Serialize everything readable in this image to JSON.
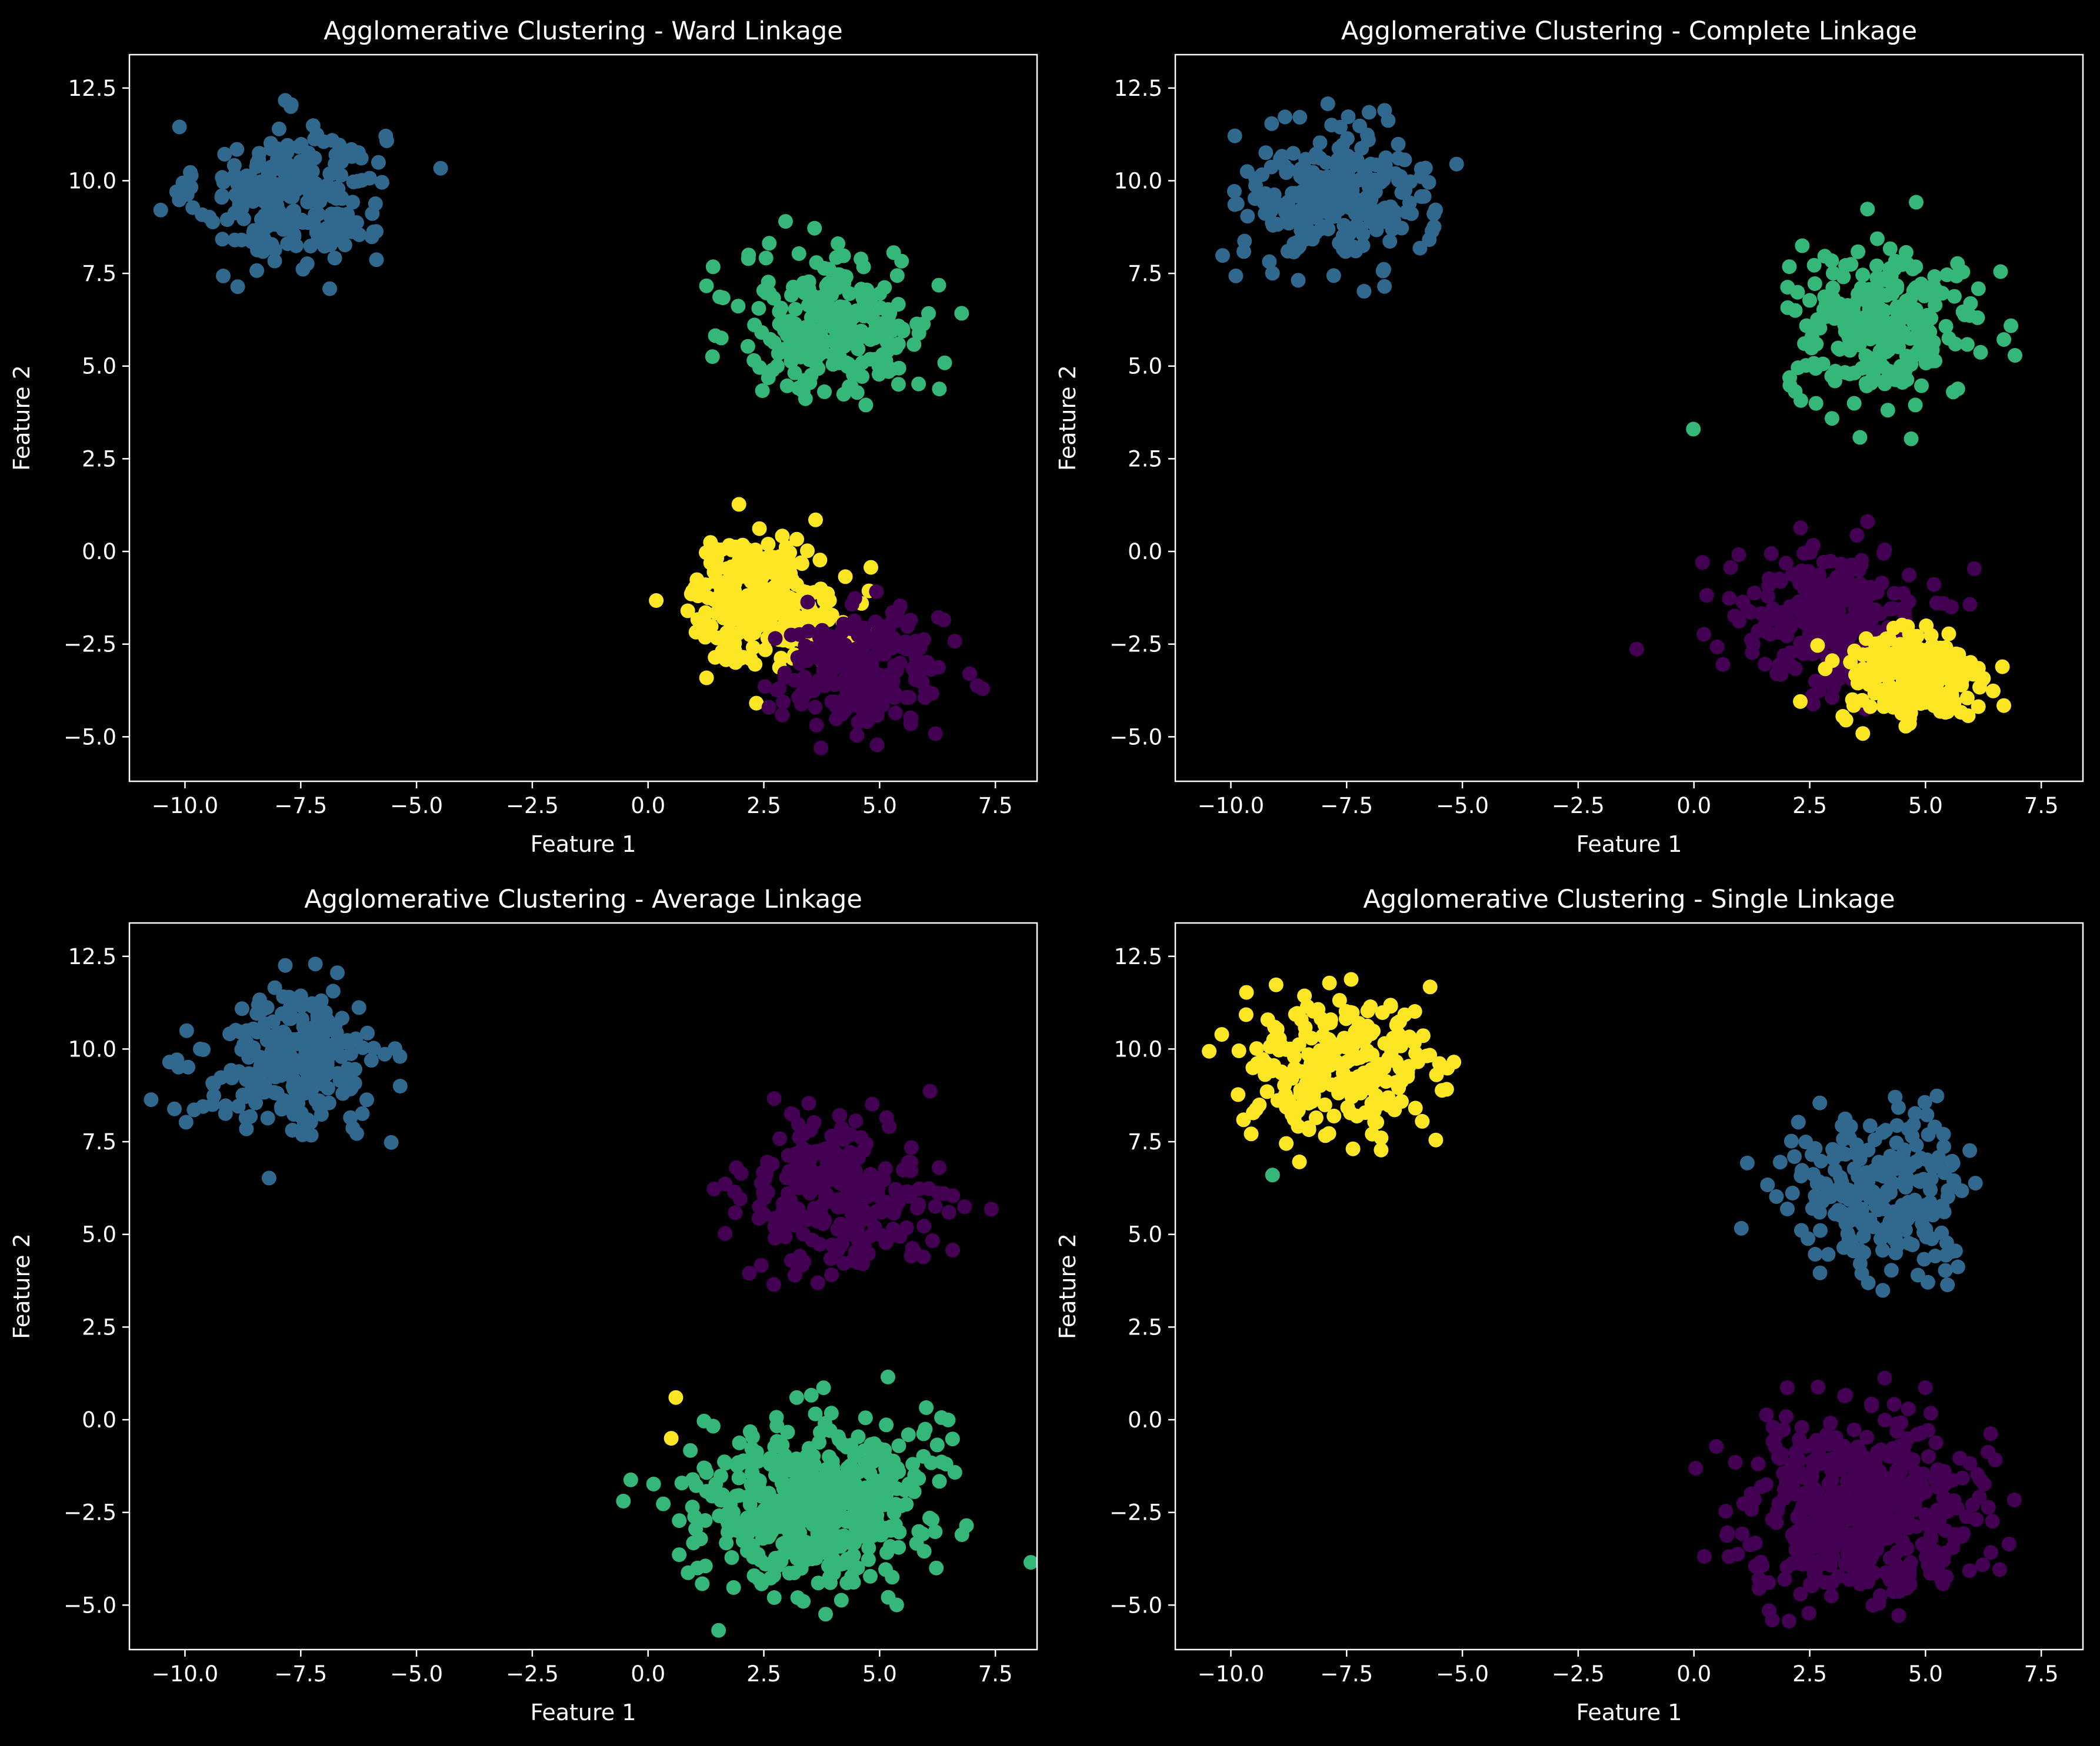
{
  "chart_data": [
    {
      "type": "scatter",
      "title": "Agglomerative Clustering - Ward Linkage",
      "xlabel": "Feature 1",
      "ylabel": "Feature 2",
      "xlim": [
        -11.2,
        8.4
      ],
      "ylim": [
        -6.2,
        13.4
      ],
      "xticks": [
        -10.0,
        -7.5,
        -5.0,
        -2.5,
        0.0,
        2.5,
        5.0,
        7.5
      ],
      "xtick_labels": [
        "−10.0",
        "−7.5",
        "−5.0",
        "−2.5",
        "0.0",
        "2.5",
        "5.0",
        "7.5"
      ],
      "yticks": [
        -5.0,
        -2.5,
        0.0,
        2.5,
        5.0,
        7.5,
        10.0,
        12.5
      ],
      "ytick_labels": [
        "−5.0",
        "−2.5",
        "0.0",
        "2.5",
        "5.0",
        "7.5",
        "10.0",
        "12.5"
      ],
      "grid": false,
      "series": [
        {
          "color": "#31688e",
          "center": [
            -7.7,
            9.6
          ],
          "spread": [
            1.0,
            0.95
          ],
          "n": 250
        },
        {
          "color": "#35b779",
          "center": [
            4.1,
            6.1
          ],
          "spread": [
            1.05,
            1.0
          ],
          "n": 250
        },
        {
          "color": "#fde725",
          "center": [
            2.5,
            -1.3
          ],
          "spread": [
            0.8,
            0.85
          ],
          "n": 250
        },
        {
          "color": "#440154",
          "center": [
            4.6,
            -3.2
          ],
          "spread": [
            0.9,
            0.75
          ],
          "n": 250
        }
      ]
    },
    {
      "type": "scatter",
      "title": "Agglomerative Clustering - Complete Linkage",
      "xlabel": "Feature 1",
      "ylabel": "Feature 2",
      "xlim": [
        -11.2,
        8.4
      ],
      "ylim": [
        -6.2,
        13.4
      ],
      "xticks": [
        -10.0,
        -7.5,
        -5.0,
        -2.5,
        0.0,
        2.5,
        5.0,
        7.5
      ],
      "xtick_labels": [
        "−10.0",
        "−7.5",
        "−5.0",
        "−2.5",
        "0.0",
        "2.5",
        "5.0",
        "7.5"
      ],
      "yticks": [
        -5.0,
        -2.5,
        0.0,
        2.5,
        5.0,
        7.5,
        10.0,
        12.5
      ],
      "ytick_labels": [
        "−5.0",
        "−2.5",
        "0.0",
        "2.5",
        "5.0",
        "7.5",
        "10.0",
        "12.5"
      ],
      "grid": false,
      "series": [
        {
          "color": "#31688e",
          "center": [
            -7.7,
            9.6
          ],
          "spread": [
            1.0,
            0.95
          ],
          "n": 250
        },
        {
          "color": "#35b779",
          "center": [
            4.1,
            6.1
          ],
          "spread": [
            1.05,
            1.0
          ],
          "n": 250
        },
        {
          "color": "#440154",
          "center": [
            2.9,
            -1.8
          ],
          "spread": [
            1.0,
            0.95
          ],
          "n": 260
        },
        {
          "color": "#fde725",
          "center": [
            4.7,
            -3.4
          ],
          "spread": [
            0.75,
            0.65
          ],
          "n": 240
        }
      ]
    },
    {
      "type": "scatter",
      "title": "Agglomerative Clustering - Average Linkage",
      "xlabel": "Feature 1",
      "ylabel": "Feature 2",
      "xlim": [
        -11.2,
        8.4
      ],
      "ylim": [
        -6.2,
        13.4
      ],
      "xticks": [
        -10.0,
        -7.5,
        -5.0,
        -2.5,
        0.0,
        2.5,
        5.0,
        7.5
      ],
      "xtick_labels": [
        "−10.0",
        "−7.5",
        "−5.0",
        "−2.5",
        "0.0",
        "2.5",
        "5.0",
        "7.5"
      ],
      "yticks": [
        -5.0,
        -2.5,
        0.0,
        2.5,
        5.0,
        7.5,
        10.0,
        12.5
      ],
      "ytick_labels": [
        "−5.0",
        "−2.5",
        "0.0",
        "2.5",
        "5.0",
        "7.5",
        "10.0",
        "12.5"
      ],
      "grid": false,
      "series": [
        {
          "color": "#31688e",
          "center": [
            -7.7,
            9.6
          ],
          "spread": [
            1.0,
            0.95
          ],
          "n": 250
        },
        {
          "color": "#440154",
          "center": [
            4.1,
            6.1
          ],
          "spread": [
            1.05,
            1.0
          ],
          "n": 250
        },
        {
          "color": "#35b779",
          "center": [
            3.6,
            -2.3
          ],
          "spread": [
            1.25,
            1.15
          ],
          "n": 498
        },
        {
          "color": "#fde725",
          "points": [
            [
              0.6,
              0.6
            ],
            [
              0.5,
              -0.5
            ]
          ]
        }
      ]
    },
    {
      "type": "scatter",
      "title": "Agglomerative Clustering - Single Linkage",
      "xlabel": "Feature 1",
      "ylabel": "Feature 2",
      "xlim": [
        -11.2,
        8.4
      ],
      "ylim": [
        -6.2,
        13.4
      ],
      "xticks": [
        -10.0,
        -7.5,
        -5.0,
        -2.5,
        0.0,
        2.5,
        5.0,
        7.5
      ],
      "xtick_labels": [
        "−10.0",
        "−7.5",
        "−5.0",
        "−2.5",
        "0.0",
        "2.5",
        "5.0",
        "7.5"
      ],
      "yticks": [
        -5.0,
        -2.5,
        0.0,
        2.5,
        5.0,
        7.5,
        10.0,
        12.5
      ],
      "ytick_labels": [
        "−5.0",
        "−2.5",
        "0.0",
        "2.5",
        "5.0",
        "7.5",
        "10.0",
        "12.5"
      ],
      "grid": false,
      "series": [
        {
          "color": "#fde725",
          "center": [
            -7.7,
            9.6
          ],
          "spread": [
            1.0,
            0.95
          ],
          "n": 249
        },
        {
          "color": "#35b779",
          "points": [
            [
              -9.1,
              6.6
            ]
          ]
        },
        {
          "color": "#31688e",
          "center": [
            4.1,
            6.1
          ],
          "spread": [
            1.05,
            1.0
          ],
          "n": 250
        },
        {
          "color": "#440154",
          "center": [
            3.6,
            -2.3
          ],
          "spread": [
            1.25,
            1.15
          ],
          "n": 500
        }
      ]
    }
  ]
}
